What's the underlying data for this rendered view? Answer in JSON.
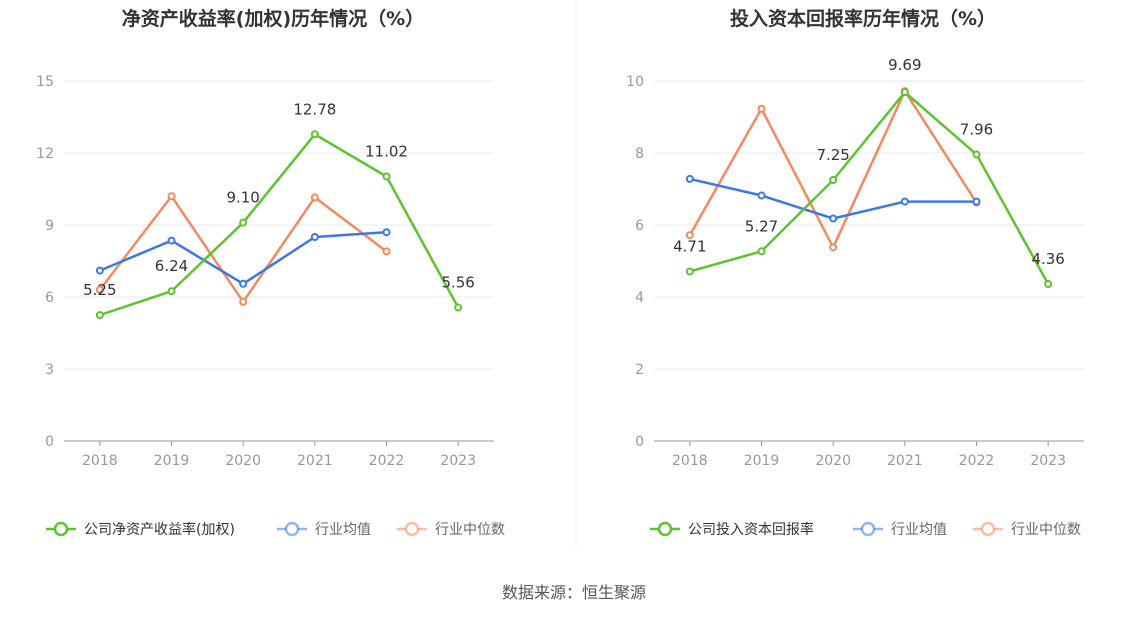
{
  "source": "数据来源：恒生聚源",
  "colors": {
    "company": "#5cc42c",
    "avg": "#3b78e7",
    "median": "#f4895f"
  },
  "chart_data": [
    {
      "type": "line",
      "title": "净资产收益率(加权)历年情况（%）",
      "categories": [
        "2018",
        "2019",
        "2020",
        "2021",
        "2022",
        "2023"
      ],
      "ylim": [
        0,
        15
      ],
      "yticks": [
        0,
        3,
        6,
        9,
        12,
        15
      ],
      "series": [
        {
          "name": "公司净资产收益率(加权)",
          "key": "company",
          "values": [
            5.25,
            6.24,
            9.1,
            12.78,
            11.02,
            5.56
          ],
          "labels": [
            "5.25",
            "6.24",
            "9.10",
            "12.78",
            "11.02",
            "5.56"
          ]
        },
        {
          "name": "行业均值",
          "key": "avg",
          "values": [
            7.1,
            8.35,
            6.55,
            8.5,
            8.7,
            null
          ]
        },
        {
          "name": "行业中位数",
          "key": "median",
          "values": [
            6.3,
            10.2,
            5.8,
            10.15,
            7.9,
            null
          ]
        }
      ]
    },
    {
      "type": "line",
      "title": "投入资本回报率历年情况（%）",
      "categories": [
        "2018",
        "2019",
        "2020",
        "2021",
        "2022",
        "2023"
      ],
      "ylim": [
        0,
        10
      ],
      "yticks": [
        0,
        2,
        4,
        6,
        8,
        10
      ],
      "series": [
        {
          "name": "公司投入资本回报率",
          "key": "company",
          "values": [
            4.71,
            5.27,
            7.25,
            9.69,
            7.96,
            4.36
          ],
          "labels": [
            "4.71",
            "5.27",
            "7.25",
            "9.69",
            "7.96",
            "4.36"
          ]
        },
        {
          "name": "行业均值",
          "key": "avg",
          "values": [
            7.28,
            6.82,
            6.18,
            6.65,
            6.65,
            null
          ]
        },
        {
          "name": "行业中位数",
          "key": "median",
          "values": [
            5.72,
            9.23,
            5.38,
            9.72,
            6.62,
            null
          ]
        }
      ]
    }
  ]
}
